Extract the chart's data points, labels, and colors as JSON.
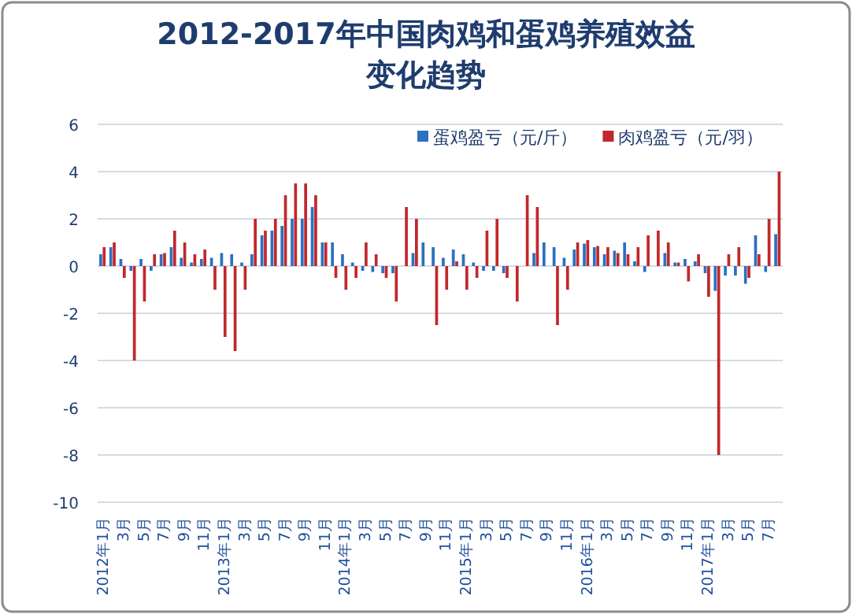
{
  "chart_data": {
    "type": "bar",
    "title": "2012-2017年中国肉鸡和蛋鸡养殖效益变化趋势",
    "categories": [
      "2012年1月",
      null,
      "3月",
      null,
      "5月",
      null,
      "7月",
      null,
      "9月",
      null,
      "11月",
      null,
      "2013年1月",
      null,
      "3月",
      null,
      "5月",
      null,
      "7月",
      null,
      "9月",
      null,
      "11月",
      null,
      "2014年1月",
      null,
      "3月",
      null,
      "5月",
      null,
      "7月",
      null,
      "9月",
      null,
      "11月",
      null,
      "2015年1月",
      null,
      "3月",
      null,
      "5月",
      null,
      "7月",
      null,
      "9月",
      null,
      "11月",
      null,
      "2016年1月",
      null,
      "3月",
      null,
      "5月",
      null,
      "7月",
      null,
      "9月",
      null,
      "11月",
      null,
      "2017年1月",
      null,
      "3月",
      null,
      "5月",
      null,
      "7月",
      null
    ],
    "series": [
      {
        "name": "蛋鸡盈亏（元/斤）",
        "color": "#2e6fc0",
        "values": [
          0.5,
          0.8,
          0.3,
          -0.2,
          0.3,
          -0.2,
          0.5,
          0.8,
          0.35,
          0.15,
          0.3,
          0.35,
          0.55,
          0.5,
          0.15,
          0.5,
          1.3,
          1.5,
          1.7,
          2.0,
          2.0,
          2.5,
          1.0,
          1.0,
          0.5,
          0.15,
          -0.2,
          -0.25,
          -0.3,
          -0.3,
          0,
          0.55,
          1.0,
          0.8,
          0.35,
          0.7,
          0.5,
          0.15,
          -0.2,
          -0.2,
          -0.3,
          0,
          0,
          0.55,
          1.0,
          0.8,
          0.35,
          0.7,
          0.95,
          0.8,
          0.5,
          0.65,
          1.0,
          0.2,
          -0.25,
          0,
          0.55,
          0.15,
          0.3,
          0.2,
          -0.3,
          -1.05,
          -0.4,
          -0.4,
          -0.75,
          1.3,
          -0.25,
          1.35
        ]
      },
      {
        "name": "肉鸡盈亏（元/羽）",
        "color": "#c0282c",
        "values": [
          0.8,
          1.0,
          -0.5,
          -4.0,
          -1.5,
          0.5,
          0.55,
          1.5,
          1.0,
          0.5,
          0.7,
          -1.0,
          -3.0,
          -3.6,
          -1.0,
          2.0,
          1.5,
          2.0,
          3.0,
          3.5,
          3.5,
          3.0,
          1.0,
          -0.5,
          -1.0,
          -0.5,
          1.0,
          0.5,
          -0.5,
          -1.5,
          2.5,
          2.0,
          0,
          -2.5,
          -1.0,
          0.2,
          -1.0,
          -0.5,
          1.5,
          2.0,
          -0.5,
          -1.5,
          3.0,
          2.5,
          0,
          -2.5,
          -1.0,
          1.0,
          1.1,
          0.85,
          0.8,
          0.55,
          0.5,
          0.8,
          1.3,
          1.5,
          1.0,
          0.15,
          -0.65,
          0.5,
          -1.3,
          -8.0,
          0.5,
          0.8,
          -0.5,
          0.5,
          2.0,
          4.0
        ]
      }
    ],
    "ylim": [
      -10,
      6
    ],
    "yticks": [
      -10,
      -8,
      -6,
      -4,
      -2,
      0,
      2,
      4,
      6
    ],
    "grid": "y",
    "legend": "top right"
  }
}
